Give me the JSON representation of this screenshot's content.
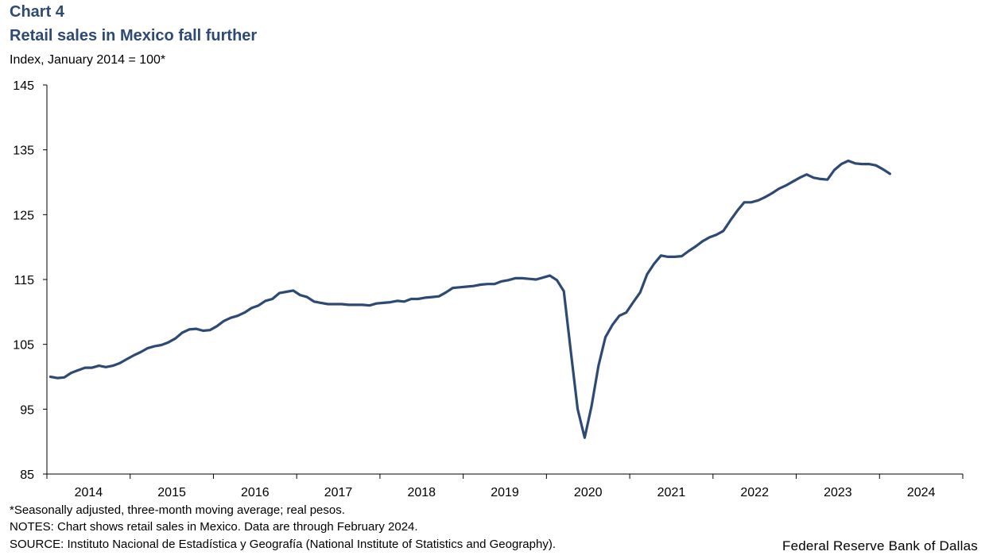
{
  "header": {
    "chart_number": "Chart 4",
    "title": "Retail sales in Mexico fall further",
    "y_unit": "Index, January 2014 = 100*"
  },
  "footer": {
    "note_asterisk": "*Seasonally adjusted, three-month moving average; real pesos.",
    "notes": "NOTES: Chart shows retail sales in Mexico. Data are through February 2024.",
    "source": "SOURCE: Instituto Nacional de Estadística y Geografía (National Institute of Statistics and Geography).",
    "credit": "Federal Reserve Bank of Dallas"
  },
  "colors": {
    "line": "#2d4a74",
    "title": "#2d4a74",
    "axis": "#000000"
  },
  "chart_data": {
    "type": "line",
    "title": "Retail sales in Mexico fall further",
    "ylabel": "Index, January 2014 = 100*",
    "xlabel": "",
    "ylim": [
      85,
      145
    ],
    "yticks": [
      85,
      95,
      105,
      115,
      125,
      135,
      145
    ],
    "xlim": [
      "2014-01",
      "2024-12"
    ],
    "xtick_labels": [
      "2014",
      "2015",
      "2016",
      "2017",
      "2018",
      "2019",
      "2020",
      "2021",
      "2022",
      "2023",
      "2024"
    ],
    "grid": false,
    "legend": "none",
    "series": [
      {
        "x": [
          "2014-01",
          "2014-02",
          "2014-03",
          "2014-04",
          "2014-05",
          "2014-06",
          "2014-07",
          "2014-08",
          "2014-09",
          "2014-10",
          "2014-11",
          "2014-12",
          "2015-01",
          "2015-02",
          "2015-03",
          "2015-04",
          "2015-05",
          "2015-06",
          "2015-07",
          "2015-08",
          "2015-09",
          "2015-10",
          "2015-11",
          "2015-12",
          "2016-01",
          "2016-02",
          "2016-03",
          "2016-04",
          "2016-05",
          "2016-06",
          "2016-07",
          "2016-08",
          "2016-09",
          "2016-10",
          "2016-11",
          "2016-12",
          "2017-01",
          "2017-02",
          "2017-03",
          "2017-04",
          "2017-05",
          "2017-06",
          "2017-07",
          "2017-08",
          "2017-09",
          "2017-10",
          "2017-11",
          "2017-12",
          "2018-01",
          "2018-02",
          "2018-03",
          "2018-04",
          "2018-05",
          "2018-06",
          "2018-07",
          "2018-08",
          "2018-09",
          "2018-10",
          "2018-11",
          "2018-12",
          "2019-01",
          "2019-02",
          "2019-03",
          "2019-04",
          "2019-05",
          "2019-06",
          "2019-07",
          "2019-08",
          "2019-09",
          "2019-10",
          "2019-11",
          "2019-12",
          "2020-01",
          "2020-02",
          "2020-03",
          "2020-04",
          "2020-05",
          "2020-06",
          "2020-07",
          "2020-08",
          "2020-09",
          "2020-10",
          "2020-11",
          "2020-12",
          "2021-01",
          "2021-02",
          "2021-03",
          "2021-04",
          "2021-05",
          "2021-06",
          "2021-07",
          "2021-08",
          "2021-09",
          "2021-10",
          "2021-11",
          "2021-12",
          "2022-01",
          "2022-02",
          "2022-03",
          "2022-04",
          "2022-05",
          "2022-06",
          "2022-07",
          "2022-08",
          "2022-09",
          "2022-10",
          "2022-11",
          "2022-12",
          "2023-01",
          "2023-02",
          "2023-03",
          "2023-04",
          "2023-05",
          "2023-06",
          "2023-07",
          "2023-08",
          "2023-09",
          "2023-10",
          "2023-11",
          "2023-12",
          "2024-01",
          "2024-02"
        ],
        "values": [
          100.0,
          99.8,
          99.9,
          100.6,
          101.0,
          101.4,
          101.4,
          101.7,
          101.5,
          101.7,
          102.1,
          102.7,
          103.3,
          103.8,
          104.4,
          104.7,
          104.9,
          105.3,
          105.9,
          106.8,
          107.3,
          107.4,
          107.1,
          107.2,
          107.8,
          108.6,
          109.1,
          109.4,
          109.9,
          110.6,
          111.0,
          111.7,
          112.0,
          112.9,
          113.1,
          113.3,
          112.6,
          112.3,
          111.6,
          111.4,
          111.2,
          111.2,
          111.2,
          111.1,
          111.1,
          111.1,
          111.0,
          111.3,
          111.4,
          111.5,
          111.7,
          111.6,
          112.0,
          112.0,
          112.2,
          112.3,
          112.4,
          113.0,
          113.7,
          113.8,
          113.9,
          114.0,
          114.2,
          114.3,
          114.3,
          114.7,
          114.9,
          115.2,
          115.2,
          115.1,
          115.0,
          115.3,
          115.6,
          114.9,
          113.2,
          104.0,
          95.0,
          90.6,
          95.5,
          101.7,
          106.1,
          108.0,
          109.4,
          109.9,
          111.5,
          113.0,
          115.8,
          117.4,
          118.7,
          118.5,
          118.5,
          118.6,
          119.4,
          120.1,
          120.9,
          121.5,
          121.9,
          122.5,
          124.1,
          125.6,
          126.9,
          126.9,
          127.2,
          127.7,
          128.3,
          129.0,
          129.5,
          130.1,
          130.7,
          131.2,
          130.7,
          130.5,
          130.4,
          131.9,
          132.8,
          133.3,
          132.9,
          132.8,
          132.8,
          132.6,
          132.0,
          131.3
        ]
      }
    ]
  }
}
